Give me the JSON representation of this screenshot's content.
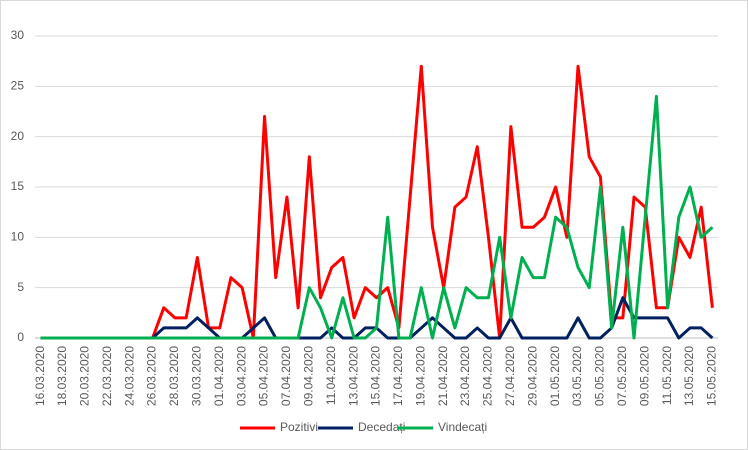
{
  "chart_data": {
    "type": "line",
    "categories": [
      "16.03.2020",
      null,
      "18.03.2020",
      null,
      "20.03.2020",
      null,
      "22.03.2020",
      null,
      "24.03.2020",
      null,
      "26.03.2020",
      null,
      "28.03.2020",
      null,
      "30.03.2020",
      null,
      "01.04.2020",
      null,
      "03.04.2020",
      null,
      "05.04.2020",
      null,
      "07.04.2020",
      null,
      "09.04.2020",
      null,
      "11.04.2020",
      null,
      "13.04.2020",
      null,
      "15.04.2020",
      null,
      "17.04.2020",
      null,
      "19.04.2020",
      null,
      "21.04.2020",
      null,
      "23.04.2020",
      null,
      "25.04.2020",
      null,
      "27.04.2020",
      null,
      "29.04.2020",
      null,
      "01.05.2020",
      null,
      "03.05.2020",
      null,
      "05.05.2020",
      null,
      "07.05.2020",
      null,
      "09.05.2020",
      null,
      "11.05.2020",
      null,
      "13.05.2020",
      null,
      "15.05.2020"
    ],
    "series": [
      {
        "name": "Pozitivi",
        "color": "#ff0000",
        "values": [
          0,
          0,
          0,
          0,
          0,
          0,
          0,
          0,
          0,
          0,
          0,
          3,
          2,
          2,
          8,
          1,
          1,
          6,
          5,
          0,
          22,
          6,
          14,
          3,
          18,
          4,
          7,
          8,
          2,
          5,
          4,
          5,
          1,
          14,
          27,
          11,
          5,
          13,
          14,
          19,
          10,
          0,
          21,
          11,
          11,
          12,
          15,
          10,
          27,
          18,
          16,
          2,
          2,
          14,
          13,
          3,
          3,
          10,
          8,
          13,
          3
        ]
      },
      {
        "name": "Decedați",
        "color": "#002060",
        "values": [
          0,
          0,
          0,
          0,
          0,
          0,
          0,
          0,
          0,
          0,
          0,
          1,
          1,
          1,
          2,
          1,
          0,
          0,
          0,
          1,
          2,
          0,
          0,
          0,
          0,
          0,
          1,
          0,
          0,
          1,
          1,
          0,
          0,
          0,
          1,
          2,
          1,
          0,
          0,
          1,
          0,
          0,
          2,
          0,
          0,
          0,
          0,
          0,
          2,
          0,
          0,
          1,
          4,
          2,
          2,
          2,
          2,
          0,
          1,
          1,
          0
        ]
      },
      {
        "name": "Vindecați",
        "color": "#00b050",
        "values": [
          0,
          0,
          0,
          0,
          0,
          0,
          0,
          0,
          0,
          0,
          0,
          0,
          0,
          0,
          0,
          0,
          0,
          0,
          0,
          0,
          0,
          0,
          0,
          0,
          5,
          3,
          0,
          4,
          0,
          0,
          1,
          12,
          0,
          0,
          5,
          0,
          5,
          1,
          5,
          4,
          4,
          10,
          2,
          8,
          6,
          6,
          12,
          11,
          7,
          5,
          15,
          1,
          11,
          0,
          12,
          24,
          3,
          12,
          15,
          10,
          11
        ]
      }
    ],
    "ylim": [
      0,
      30
    ],
    "yticks": [
      0,
      5,
      10,
      15,
      20,
      25,
      30
    ],
    "grid": true,
    "legend": "bottom"
  }
}
